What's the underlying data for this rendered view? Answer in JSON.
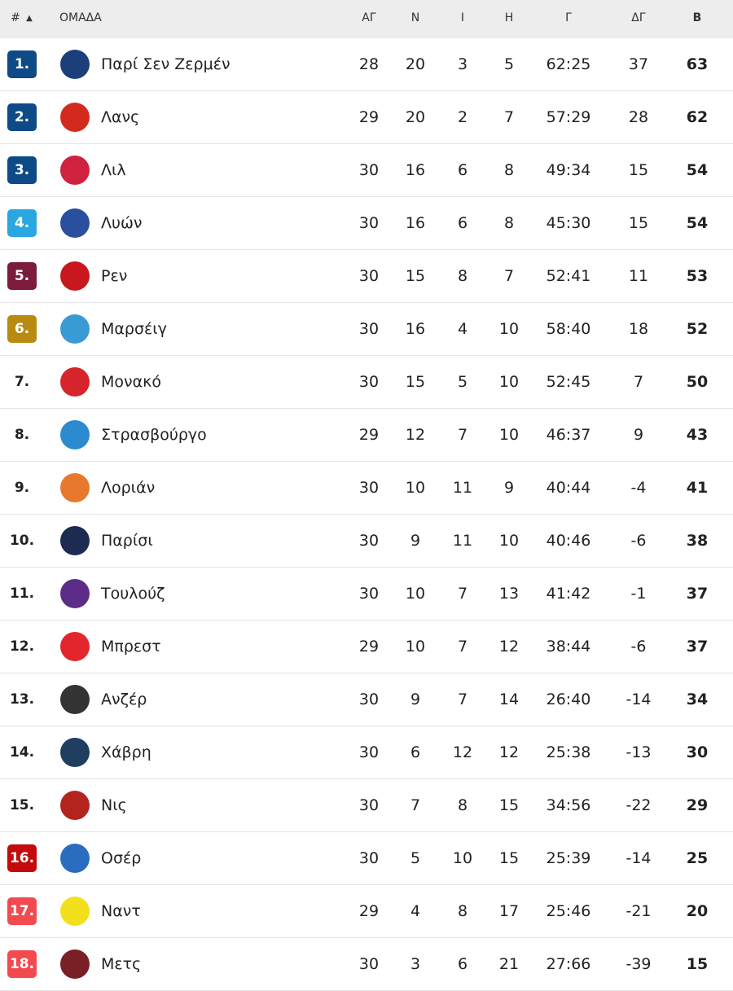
{
  "header": {
    "pos": "#",
    "sort_icon": "triangle-up",
    "team": "ΟΜΑΔΑ",
    "played": "ΑΓ",
    "won": "Ν",
    "draw": "Ι",
    "lost": "Η",
    "goals": "Γ",
    "gd": "ΔΓ",
    "points": "Β"
  },
  "zone_colors": {
    "champions": "#0e4a86",
    "europa": "#2aa6e0",
    "conference": "#7b1c3c",
    "playoff": "#b98a12",
    "relegation_playoff": "#c40a0a",
    "relegation": "#f24b4f"
  },
  "rows": [
    {
      "pos": "1.",
      "team": "Παρί Σεν Ζερμέν",
      "p": "28",
      "w": "20",
      "d": "3",
      "l": "5",
      "g": "62:25",
      "gd": "37",
      "pts": "63",
      "zone": "#0e4a86",
      "logo": "#1b3f7a"
    },
    {
      "pos": "2.",
      "team": "Λανς",
      "p": "29",
      "w": "20",
      "d": "2",
      "l": "7",
      "g": "57:29",
      "gd": "28",
      "pts": "62",
      "zone": "#0e4a86",
      "logo": "#d42a1e"
    },
    {
      "pos": "3.",
      "team": "Λιλ",
      "p": "30",
      "w": "16",
      "d": "6",
      "l": "8",
      "g": "49:34",
      "gd": "15",
      "pts": "54",
      "zone": "#0e4a86",
      "logo": "#d0213f"
    },
    {
      "pos": "4.",
      "team": "Λυών",
      "p": "30",
      "w": "16",
      "d": "6",
      "l": "8",
      "g": "45:30",
      "gd": "15",
      "pts": "54",
      "zone": "#2aa6e0",
      "logo": "#2a4f9e"
    },
    {
      "pos": "5.",
      "team": "Ρεν",
      "p": "30",
      "w": "15",
      "d": "8",
      "l": "7",
      "g": "52:41",
      "gd": "11",
      "pts": "53",
      "zone": "#7b1c3c",
      "logo": "#c8171e"
    },
    {
      "pos": "6.",
      "team": "Μαρσέιγ",
      "p": "30",
      "w": "16",
      "d": "4",
      "l": "10",
      "g": "58:40",
      "gd": "18",
      "pts": "52",
      "zone": "#b98a12",
      "logo": "#3a9ad6"
    },
    {
      "pos": "7.",
      "team": "Μονακό",
      "p": "30",
      "w": "15",
      "d": "5",
      "l": "10",
      "g": "52:45",
      "gd": "7",
      "pts": "50",
      "zone": "",
      "logo": "#d6252a"
    },
    {
      "pos": "8.",
      "team": "Στρασβούργο",
      "p": "29",
      "w": "12",
      "d": "7",
      "l": "10",
      "g": "46:37",
      "gd": "9",
      "pts": "43",
      "zone": "",
      "logo": "#2b8ad0"
    },
    {
      "pos": "9.",
      "team": "Λοριάν",
      "p": "30",
      "w": "10",
      "d": "11",
      "l": "9",
      "g": "40:44",
      "gd": "-4",
      "pts": "41",
      "zone": "",
      "logo": "#e8792c"
    },
    {
      "pos": "10.",
      "team": "Παρίσι",
      "p": "30",
      "w": "9",
      "d": "11",
      "l": "10",
      "g": "40:46",
      "gd": "-6",
      "pts": "38",
      "zone": "",
      "logo": "#1d2b52"
    },
    {
      "pos": "11.",
      "team": "Τουλούζ",
      "p": "30",
      "w": "10",
      "d": "7",
      "l": "13",
      "g": "41:42",
      "gd": "-1",
      "pts": "37",
      "zone": "",
      "logo": "#5b2d86"
    },
    {
      "pos": "12.",
      "team": "Μπρεστ",
      "p": "29",
      "w": "10",
      "d": "7",
      "l": "12",
      "g": "38:44",
      "gd": "-6",
      "pts": "37",
      "zone": "",
      "logo": "#e2262c"
    },
    {
      "pos": "13.",
      "team": "Ανζέρ",
      "p": "30",
      "w": "9",
      "d": "7",
      "l": "14",
      "g": "26:40",
      "gd": "-14",
      "pts": "34",
      "zone": "",
      "logo": "#333333"
    },
    {
      "pos": "14.",
      "team": "Χάβρη",
      "p": "30",
      "w": "6",
      "d": "12",
      "l": "12",
      "g": "25:38",
      "gd": "-13",
      "pts": "30",
      "zone": "",
      "logo": "#203e5f"
    },
    {
      "pos": "15.",
      "team": "Νις",
      "p": "30",
      "w": "7",
      "d": "8",
      "l": "15",
      "g": "34:56",
      "gd": "-22",
      "pts": "29",
      "zone": "",
      "logo": "#b3241f"
    },
    {
      "pos": "16.",
      "team": "Οσέρ",
      "p": "30",
      "w": "5",
      "d": "10",
      "l": "15",
      "g": "25:39",
      "gd": "-14",
      "pts": "25",
      "zone": "#c40a0a",
      "logo": "#2a6cc0"
    },
    {
      "pos": "17.",
      "team": "Ναντ",
      "p": "29",
      "w": "4",
      "d": "8",
      "l": "17",
      "g": "25:46",
      "gd": "-21",
      "pts": "20",
      "zone": "#f24b4f",
      "logo": "#f2e01c"
    },
    {
      "pos": "18.",
      "team": "Μετς",
      "p": "30",
      "w": "3",
      "d": "6",
      "l": "21",
      "g": "27:66",
      "gd": "-39",
      "pts": "15",
      "zone": "#f24b4f",
      "logo": "#7a1f25"
    }
  ]
}
